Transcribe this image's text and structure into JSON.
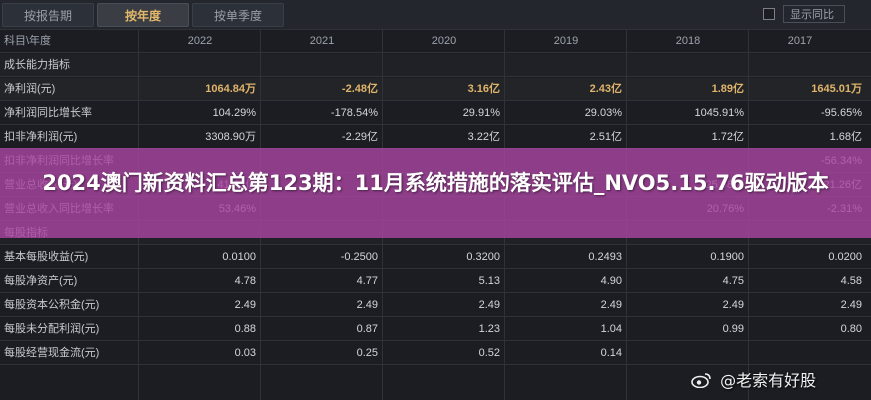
{
  "tabs": [
    {
      "label": "按报告期",
      "active": false
    },
    {
      "label": "按年度",
      "active": true
    },
    {
      "label": "按单季度",
      "active": false
    }
  ],
  "compare": {
    "label": "显示同比",
    "checked": false
  },
  "table": {
    "corner_label": "科目\\年度",
    "years": [
      "2022",
      "2021",
      "2020",
      "2019",
      "2018",
      "2017"
    ],
    "rows": [
      {
        "label": "成长能力指标",
        "type": "section",
        "values": [
          "",
          "",
          "",
          "",
          "",
          ""
        ]
      },
      {
        "label": "净利润(元)",
        "type": "highlight",
        "values": [
          "1064.84万",
          "-2.48亿",
          "3.16亿",
          "2.43亿",
          "1.89亿",
          "1645.01万"
        ]
      },
      {
        "label": "净利润同比增长率",
        "type": "data",
        "values": [
          "104.29%",
          "-178.54%",
          "29.91%",
          "29.03%",
          "1045.91%",
          "-95.65%"
        ]
      },
      {
        "label": "扣非净利润(元)",
        "type": "data",
        "values": [
          "3308.90万",
          "-2.29亿",
          "3.22亿",
          "2.51亿",
          "1.72亿",
          "1.68亿"
        ]
      },
      {
        "label": "扣非净利润同比增长率",
        "type": "data",
        "values": [
          "",
          "",
          "",
          "",
          "",
          "-56.34%"
        ]
      },
      {
        "label": "营业总收入(元)",
        "type": "data",
        "values": [
          "41.43亿",
          "",
          "26.77亿",
          "",
          "25.68亿",
          "21.26亿"
        ]
      },
      {
        "label": "营业总收入同比增长率",
        "type": "data",
        "values": [
          "53.46%",
          "",
          "",
          "",
          "20.76%",
          "-2.31%"
        ]
      },
      {
        "label": "每股指标",
        "type": "section",
        "values": [
          "",
          "",
          "",
          "",
          "",
          ""
        ]
      },
      {
        "label": "基本每股收益(元)",
        "type": "data",
        "values": [
          "0.0100",
          "-0.2500",
          "0.3200",
          "0.2493",
          "0.1900",
          "0.0200"
        ]
      },
      {
        "label": "每股净资产(元)",
        "type": "data",
        "values": [
          "4.78",
          "4.77",
          "5.13",
          "4.90",
          "4.75",
          "4.58"
        ]
      },
      {
        "label": "每股资本公积金(元)",
        "type": "data",
        "values": [
          "2.49",
          "2.49",
          "2.49",
          "2.49",
          "2.49",
          "2.49"
        ]
      },
      {
        "label": "每股未分配利润(元)",
        "type": "data",
        "values": [
          "0.88",
          "0.87",
          "1.23",
          "1.04",
          "0.99",
          "0.80"
        ]
      },
      {
        "label": "每股经营现金流(元)",
        "type": "data",
        "values": [
          "0.03",
          "0.25",
          "0.52",
          "0.14",
          "",
          ""
        ]
      }
    ]
  },
  "nav": {
    "next_icon": "double-chevron-right-icon",
    "next_glyph": "»"
  },
  "banner": {
    "title": "2024澳门新资料汇总第123期：11月系统措施的落实评估_NVO5.15.76驱动版本"
  },
  "watermark": {
    "text": "@老索有好股",
    "icon": "weibo-icon"
  },
  "colors": {
    "background": "#1b1d22",
    "active_tab_text": "#e3b86b",
    "banner": "#a846a0"
  }
}
